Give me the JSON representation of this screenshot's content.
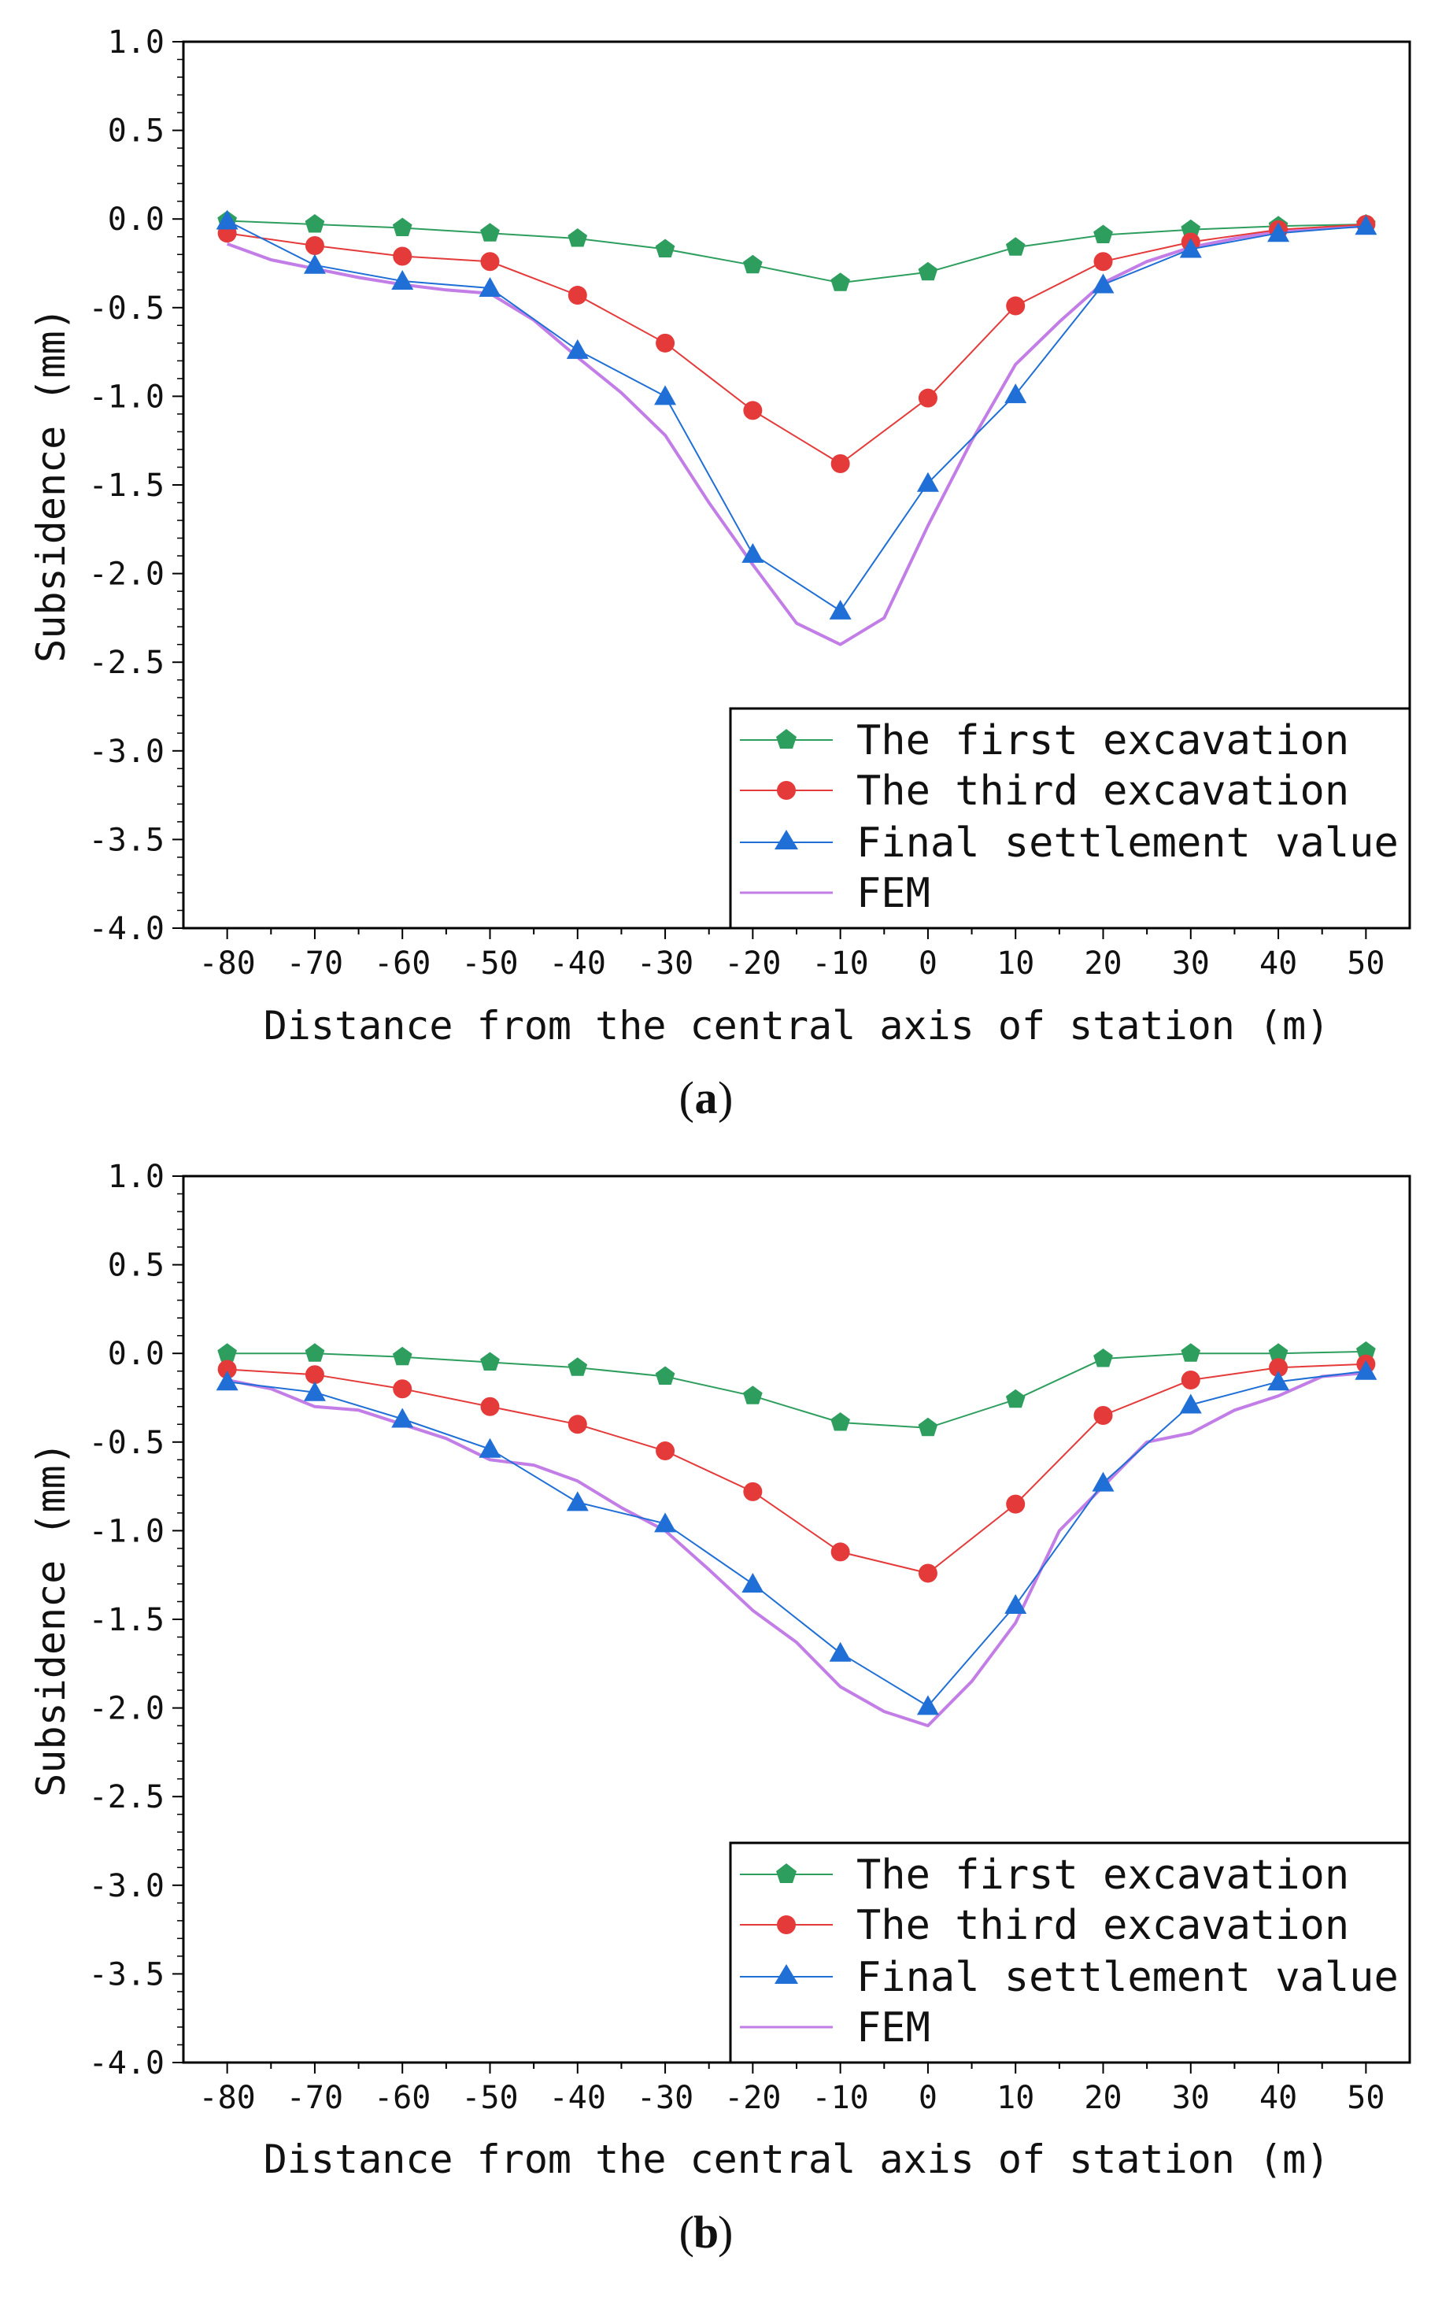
{
  "chart_data": [
    {
      "type": "line",
      "panel_label": "a",
      "xlabel": "Distance from the central axis of station (m)",
      "ylabel": "Subsidence (mm)",
      "xlim": [
        -85,
        55
      ],
      "ylim": [
        -4.0,
        1.0
      ],
      "x_ticks": [
        -80,
        -70,
        -60,
        -50,
        -40,
        -30,
        -20,
        -10,
        0,
        10,
        20,
        30,
        40,
        50
      ],
      "x_tick_labels": [
        "-80",
        "-70",
        "-60",
        "-50",
        "-40",
        "-30",
        "-20",
        "-10",
        "0",
        "10",
        "20",
        "30",
        "40",
        "50"
      ],
      "y_ticks": [
        -4.0,
        -3.5,
        -3.0,
        -2.5,
        -2.0,
        -1.5,
        -1.0,
        -0.5,
        0.0,
        0.5,
        1.0
      ],
      "y_tick_labels": [
        "-4.0",
        "-3.5",
        "-3.0",
        "-2.5",
        "-2.0",
        "-1.5",
        "-1.0",
        "-0.5",
        "0.0",
        "0.5",
        "1.0"
      ],
      "legend_position": "lower-right",
      "series": [
        {
          "name": "The first excavation",
          "marker": "pentagon",
          "color": "#2e9e5e",
          "x": [
            -80,
            -70,
            -60,
            -50,
            -40,
            -30,
            -20,
            -10,
            0,
            10,
            20,
            30,
            40,
            50
          ],
          "y": [
            -0.01,
            -0.03,
            -0.05,
            -0.08,
            -0.11,
            -0.17,
            -0.26,
            -0.36,
            -0.3,
            -0.16,
            -0.09,
            -0.06,
            -0.04,
            -0.03
          ]
        },
        {
          "name": "The third excavation",
          "marker": "circle",
          "color": "#e53a3a",
          "x": [
            -80,
            -70,
            -60,
            -50,
            -40,
            -30,
            -20,
            -10,
            0,
            10,
            20,
            30,
            40,
            50
          ],
          "y": [
            -0.08,
            -0.15,
            -0.21,
            -0.24,
            -0.43,
            -0.7,
            -1.08,
            -1.38,
            -1.01,
            -0.49,
            -0.24,
            -0.13,
            -0.06,
            -0.03
          ]
        },
        {
          "name": "Final settlement value",
          "marker": "triangle",
          "color": "#1f6fd6",
          "x": [
            -80,
            -70,
            -60,
            -50,
            -40,
            -30,
            -20,
            -10,
            0,
            10,
            20,
            30,
            40,
            50
          ],
          "y": [
            -0.01,
            -0.26,
            -0.35,
            -0.39,
            -0.74,
            -1.0,
            -1.89,
            -2.21,
            -1.49,
            -0.99,
            -0.37,
            -0.17,
            -0.08,
            -0.04
          ]
        },
        {
          "name": "FEM",
          "marker": "none",
          "color": "#c27ee6",
          "x": [
            -80,
            -75,
            -70,
            -65,
            -60,
            -55,
            -50,
            -45,
            -40,
            -35,
            -30,
            -25,
            -20,
            -15,
            -10,
            -5,
            0,
            5,
            10,
            15,
            20,
            25,
            30,
            35,
            40,
            45,
            50
          ],
          "y": [
            -0.14,
            -0.23,
            -0.28,
            -0.33,
            -0.37,
            -0.4,
            -0.42,
            -0.57,
            -0.78,
            -0.98,
            -1.22,
            -1.6,
            -1.95,
            -2.28,
            -2.4,
            -2.25,
            -1.73,
            -1.25,
            -0.82,
            -0.58,
            -0.36,
            -0.24,
            -0.16,
            -0.11,
            -0.07,
            -0.05,
            -0.04
          ]
        }
      ]
    },
    {
      "type": "line",
      "panel_label": "b",
      "xlabel": "Distance from the central axis of station (m)",
      "ylabel": "Subsidence (mm)",
      "xlim": [
        -85,
        55
      ],
      "ylim": [
        -4.0,
        1.0
      ],
      "x_ticks": [
        -80,
        -70,
        -60,
        -50,
        -40,
        -30,
        -20,
        -10,
        0,
        10,
        20,
        30,
        40,
        50
      ],
      "x_tick_labels": [
        "-80",
        "-70",
        "-60",
        "-50",
        "-40",
        "-30",
        "-20",
        "-10",
        "0",
        "10",
        "20",
        "30",
        "40",
        "50"
      ],
      "y_ticks": [
        -4.0,
        -3.5,
        -3.0,
        -2.5,
        -2.0,
        -1.5,
        -1.0,
        -0.5,
        0.0,
        0.5,
        1.0
      ],
      "y_tick_labels": [
        "-4.0",
        "-3.5",
        "-3.0",
        "-2.5",
        "-2.0",
        "-1.5",
        "-1.0",
        "-0.5",
        "0.0",
        "0.5",
        "1.0"
      ],
      "legend_position": "lower-right",
      "series": [
        {
          "name": "The first excavation",
          "marker": "pentagon",
          "color": "#2e9e5e",
          "x": [
            -80,
            -70,
            -60,
            -50,
            -40,
            -30,
            -20,
            -10,
            0,
            10,
            20,
            30,
            40,
            50
          ],
          "y": [
            0.0,
            0.0,
            -0.02,
            -0.05,
            -0.08,
            -0.13,
            -0.24,
            -0.39,
            -0.42,
            -0.26,
            -0.03,
            0.0,
            0.0,
            0.01
          ]
        },
        {
          "name": "The third excavation",
          "marker": "circle",
          "color": "#e53a3a",
          "x": [
            -80,
            -70,
            -60,
            -50,
            -40,
            -30,
            -20,
            -10,
            0,
            10,
            20,
            30,
            40,
            50
          ],
          "y": [
            -0.09,
            -0.12,
            -0.2,
            -0.3,
            -0.4,
            -0.55,
            -0.78,
            -1.12,
            -1.24,
            -0.85,
            -0.35,
            -0.15,
            -0.08,
            -0.06
          ]
        },
        {
          "name": "Final settlement value",
          "marker": "triangle",
          "color": "#1f6fd6",
          "x": [
            -80,
            -70,
            -60,
            -50,
            -40,
            -30,
            -20,
            -10,
            0,
            10,
            20,
            30,
            40,
            50
          ],
          "y": [
            -0.16,
            -0.22,
            -0.37,
            -0.54,
            -0.84,
            -0.96,
            -1.3,
            -1.69,
            -1.99,
            -1.42,
            -0.73,
            -0.29,
            -0.16,
            -0.1
          ]
        },
        {
          "name": "FEM",
          "marker": "none",
          "color": "#c27ee6",
          "x": [
            -80,
            -75,
            -70,
            -65,
            -60,
            -55,
            -50,
            -45,
            -40,
            -35,
            -30,
            -25,
            -20,
            -15,
            -10,
            -5,
            0,
            5,
            10,
            15,
            20,
            25,
            30,
            35,
            40,
            45,
            50
          ],
          "y": [
            -0.15,
            -0.2,
            -0.3,
            -0.32,
            -0.4,
            -0.48,
            -0.6,
            -0.63,
            -0.72,
            -0.87,
            -1.0,
            -1.22,
            -1.45,
            -1.63,
            -1.88,
            -2.02,
            -2.1,
            -1.85,
            -1.52,
            -1.0,
            -0.75,
            -0.5,
            -0.45,
            -0.32,
            -0.24,
            -0.13,
            -0.11
          ]
        }
      ]
    }
  ]
}
